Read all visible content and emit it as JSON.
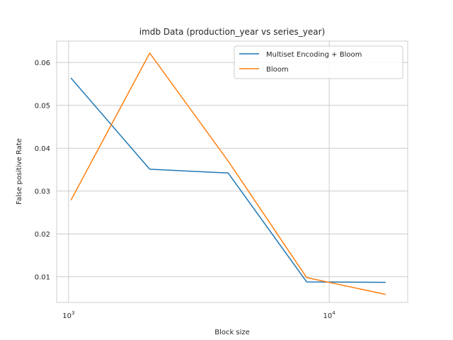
{
  "chart_data": {
    "type": "line",
    "title": "imdb Data (production_year vs series_year)",
    "xlabel": "Block size",
    "ylabel": "False positive Rate",
    "xscale": "log",
    "xlim": [
      900,
      20000
    ],
    "ylim": [
      0.004,
      0.065
    ],
    "x_ticks": [
      {
        "value": 1000,
        "base": "10",
        "exp": "3"
      },
      {
        "value": 10000,
        "base": "10",
        "exp": "4"
      }
    ],
    "y_ticks": [
      0.01,
      0.02,
      0.03,
      0.04,
      0.05,
      0.06
    ],
    "y_tick_labels": [
      "0.01",
      "0.02",
      "0.03",
      "0.04",
      "0.05",
      "0.06"
    ],
    "grid": true,
    "legend_position": "top-right",
    "x": [
      1024,
      2048,
      4096,
      8192,
      16384
    ],
    "series": [
      {
        "name": "Multiset Encoding + Bloom",
        "color": "#1f77b4",
        "values": [
          0.0563,
          0.0351,
          0.0342,
          0.0088,
          0.0087
        ]
      },
      {
        "name": "Bloom",
        "color": "#ff7f0e",
        "values": [
          0.028,
          0.0622,
          0.037,
          0.0098,
          0.0059
        ]
      }
    ]
  }
}
